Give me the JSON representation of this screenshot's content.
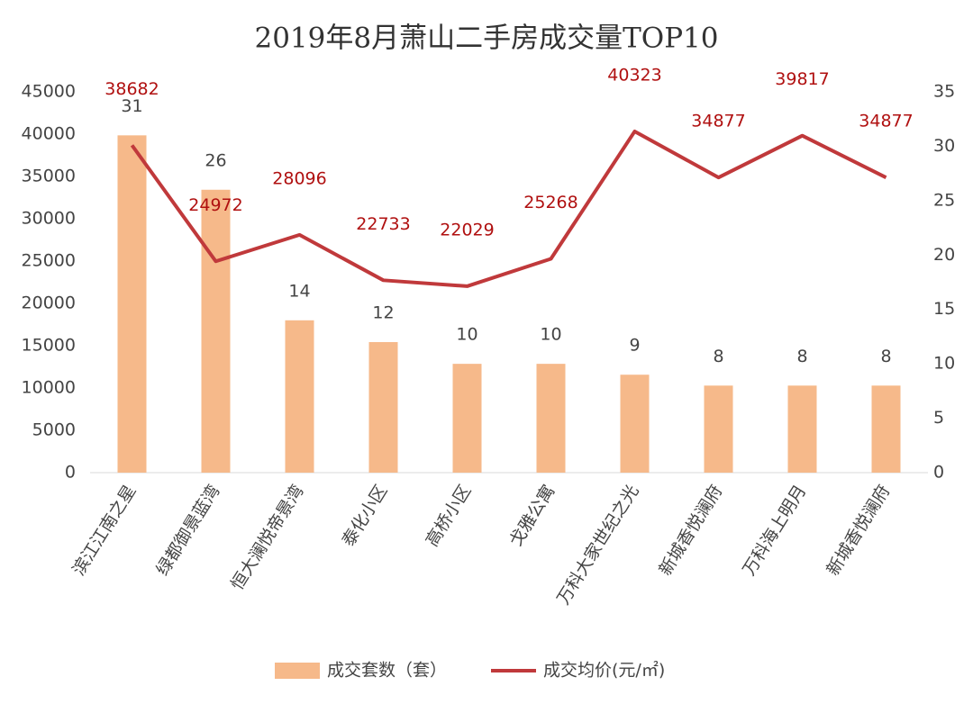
{
  "chart_data": {
    "type": "combo",
    "title": "2019年8月萧山二手房成交量TOP10",
    "categories": [
      "滨江江南之星",
      "绿都御景蓝湾",
      "恒大澜悦帝景湾",
      "泰化小区",
      "高桥小区",
      "戈雅公寓",
      "万科大家世纪之光",
      "新城香悦澜府",
      "万科海上明月",
      "新城香悦澜府"
    ],
    "series": [
      {
        "name": "成交套数（套）",
        "type": "bar",
        "axis": "y2",
        "color": "#f6b98a",
        "values": [
          31,
          26,
          14,
          12,
          10,
          10,
          9,
          8,
          8,
          8
        ]
      },
      {
        "name": "成交均价(元/㎡)",
        "type": "line",
        "color": "#c0393b",
        "label_color": "#b01010",
        "values": [
          38682,
          24972,
          28096,
          22733,
          22029,
          25268,
          40323,
          34877,
          39817,
          34877
        ]
      }
    ],
    "ylim": [
      0,
      45000
    ],
    "yticks": [
      0,
      5000,
      10000,
      15000,
      20000,
      25000,
      30000,
      35000,
      40000,
      45000
    ],
    "y2lim": [
      0,
      35
    ],
    "y2ticks": [
      0,
      5,
      10,
      15,
      20,
      25,
      30,
      35
    ],
    "grid": false,
    "legend": "bottom"
  }
}
